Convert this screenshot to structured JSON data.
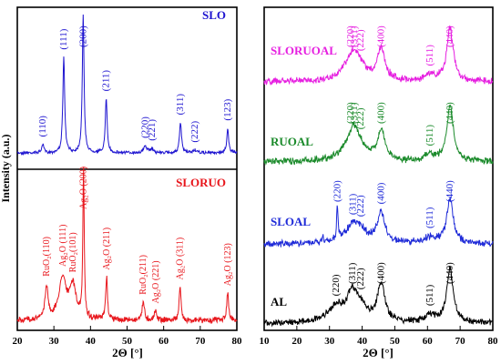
{
  "colors": {
    "SLO": "#1e14d0",
    "SLORUO": "#e8151b",
    "SLORUOAL": "#e61fe0",
    "RUOAL": "#1a8a2a",
    "SLOAL": "#1e2ad8",
    "AL": "#000000"
  },
  "chart_data": [
    {
      "type": "line",
      "xlabel": "2Θ [°]",
      "ylabel": "Intensity (a.u.)",
      "xlim": [
        20,
        80
      ],
      "xticks": [
        "20",
        "30",
        "40",
        "50",
        "60",
        "70",
        "80"
      ],
      "stacked": true,
      "series": [
        {
          "name": "SLO",
          "color": "#1e14d0",
          "peaks": [
            {
              "x": 27.0,
              "h": 0.06,
              "w": 0.35,
              "label": "(110)"
            },
            {
              "x": 32.7,
              "h": 0.69,
              "w": 0.3,
              "label": "(111)"
            },
            {
              "x": 38.0,
              "h": 1.0,
              "w": 0.28,
              "label": "(200)"
            },
            {
              "x": 44.3,
              "h": 0.39,
              "w": 0.3,
              "label": "(211)"
            },
            {
              "x": 55.0,
              "h": 0.05,
              "w": 0.5,
              "label": "(220)"
            },
            {
              "x": 56.8,
              "h": 0.03,
              "w": 0.5,
              "label": "(221)"
            },
            {
              "x": 64.6,
              "h": 0.22,
              "w": 0.32,
              "label": "(311)"
            },
            {
              "x": 68.5,
              "h": 0.02,
              "w": 0.5,
              "label": "(222)"
            },
            {
              "x": 77.5,
              "h": 0.18,
              "w": 0.3,
              "label": "(123)"
            }
          ]
        },
        {
          "name": "SLORUO",
          "color": "#e8151b",
          "peaks": [
            {
              "x": 28.0,
              "h": 0.22,
              "w": 0.5,
              "label": "RuO₂(110)"
            },
            {
              "x": 32.4,
              "h": 0.28,
              "w": 1.2,
              "label": "Ag₂O (111)"
            },
            {
              "x": 35.2,
              "h": 0.22,
              "w": 1.0,
              "label": "RuO₂(101)"
            },
            {
              "x": 38.1,
              "h": 1.0,
              "w": 0.22,
              "label": "Ag₂O (200)"
            },
            {
              "x": 44.4,
              "h": 0.28,
              "w": 0.3,
              "label": "Ag₂O (211)"
            },
            {
              "x": 54.4,
              "h": 0.12,
              "w": 0.4,
              "label": "RuO₂(211)"
            },
            {
              "x": 57.8,
              "h": 0.06,
              "w": 0.4,
              "label": "Ag₂O (221)"
            },
            {
              "x": 64.5,
              "h": 0.22,
              "w": 0.3,
              "label": "Ag₂O (311)"
            },
            {
              "x": 77.5,
              "h": 0.18,
              "w": 0.3,
              "label": "Ag₂O (123)"
            }
          ]
        }
      ]
    },
    {
      "type": "line",
      "xlabel": "2Θ [°]",
      "xlim": [
        10,
        80
      ],
      "xticks": [
        "10",
        "20",
        "30",
        "40",
        "50",
        "60",
        "70",
        "80"
      ],
      "stacked": true,
      "series": [
        {
          "name": "SLORUOAL",
          "color": "#e61fe0",
          "peaks": [
            {
              "x": 36.5,
              "h": 0.3,
              "w": 3.5,
              "label": "(220)"
            },
            {
              "x": 37.6,
              "h": 0.2,
              "w": 1.5,
              "label": "(311)"
            },
            {
              "x": 39.5,
              "h": 0.12,
              "w": 2.0,
              "label": "(222)"
            },
            {
              "x": 45.8,
              "h": 0.55,
              "w": 1.4,
              "label": "(400)"
            },
            {
              "x": 60.8,
              "h": 0.1,
              "w": 2.0,
              "label": "(511)"
            },
            {
              "x": 66.9,
              "h": 0.9,
              "w": 1.2,
              "label": "(440)"
            }
          ]
        },
        {
          "name": "RUOAL",
          "color": "#1a8a2a",
          "peaks": [
            {
              "x": 36.5,
              "h": 0.3,
              "w": 3.5,
              "label": "(220)"
            },
            {
              "x": 37.6,
              "h": 0.28,
              "w": 1.5,
              "label": "(311)"
            },
            {
              "x": 39.5,
              "h": 0.12,
              "w": 2.0,
              "label": "(222)"
            },
            {
              "x": 45.8,
              "h": 0.5,
              "w": 1.4,
              "label": "(400)"
            },
            {
              "x": 60.8,
              "h": 0.1,
              "w": 2.0,
              "label": "(511)"
            },
            {
              "x": 66.9,
              "h": 0.95,
              "w": 1.2,
              "label": "(440)"
            }
          ]
        },
        {
          "name": "SLOAL",
          "color": "#1e2ad8",
          "peaks": [
            {
              "x": 28.0,
              "h": 0.1,
              "w": 0.3,
              "label": ""
            },
            {
              "x": 32.4,
              "h": 0.55,
              "w": 0.25,
              "label": "(220)"
            },
            {
              "x": 37.2,
              "h": 0.3,
              "w": 3.0,
              "label": "(311)"
            },
            {
              "x": 39.5,
              "h": 0.12,
              "w": 2.0,
              "label": "(222)"
            },
            {
              "x": 45.8,
              "h": 0.5,
              "w": 1.4,
              "label": "(400)"
            },
            {
              "x": 60.8,
              "h": 0.1,
              "w": 2.0,
              "label": "(511)"
            },
            {
              "x": 66.9,
              "h": 0.75,
              "w": 1.2,
              "label": "(440)"
            }
          ]
        },
        {
          "name": "AL",
          "color": "#000000",
          "peaks": [
            {
              "x": 32.0,
              "h": 0.25,
              "w": 3.0,
              "label": "(220)"
            },
            {
              "x": 37.0,
              "h": 0.45,
              "w": 2.0,
              "label": "(311)"
            },
            {
              "x": 39.5,
              "h": 0.2,
              "w": 2.0,
              "label": "(222)"
            },
            {
              "x": 45.8,
              "h": 0.65,
              "w": 1.4,
              "label": "(400)"
            },
            {
              "x": 60.8,
              "h": 0.12,
              "w": 2.0,
              "label": "(511)"
            },
            {
              "x": 66.9,
              "h": 0.9,
              "w": 1.2,
              "label": "(440)"
            }
          ]
        }
      ]
    }
  ]
}
